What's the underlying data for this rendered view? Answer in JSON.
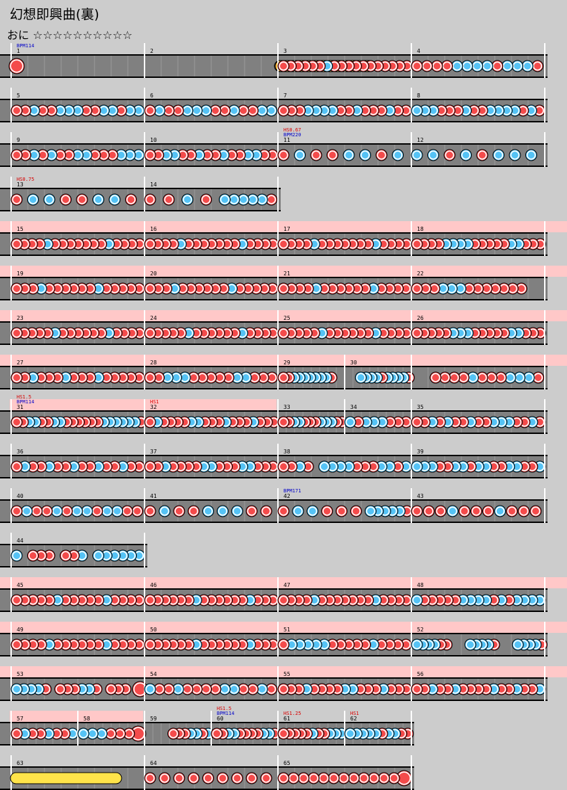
{
  "header": {
    "title": "幻想即興曲(裏)",
    "difficulty_label": "おに",
    "stars": "☆☆☆☆☆☆☆☆☆☆",
    "star_level": 10
  },
  "colors": {
    "don": "#f44b4b",
    "ka": "#55c3f5",
    "roll": "#ffb742",
    "balloon": "#ffe44a",
    "gogo_band": "#ffc8c8",
    "lane": "#808080",
    "bpm_text": "#0000c8",
    "hs_text": "#d80000"
  },
  "rows": [
    {
      "measures": [
        {
          "num": "1",
          "bpm": "BPM114",
          "pattern": "D.0000000000000000"
        },
        {
          "num": "2",
          "roll": "30",
          "pattern": "00000000000000000000"
        },
        {
          "num": "3",
          "pattern": "ddddddkddddddddddd"
        },
        {
          "num": "4",
          "pattern": "ddddkkkkdkkkd"
        }
      ]
    },
    {
      "measures": [
        {
          "num": "5",
          "pattern": "ddkddkkkddkkdkk"
        },
        {
          "num": "6",
          "pattern": "dkddkkkddkddkk"
        },
        {
          "num": "7",
          "pattern": "dddkkkkddkdddkdd"
        },
        {
          "num": "8",
          "pattern": "kkkdddkddkkkkdkd"
        }
      ]
    },
    {
      "measures": [
        {
          "num": "9",
          "pattern": "ddkdkddkkdddkkk"
        },
        {
          "num": "10",
          "pattern": "ddkkddkddkddkkdd"
        },
        {
          "num": "11",
          "hs": "HS0.67",
          "bpm": "BPM220",
          "pattern": "d0k0d0d0k0k0d0k0"
        },
        {
          "num": "12",
          "pattern": "k0k0d0k0d0k0k0k0"
        }
      ]
    },
    {
      "measures": [
        {
          "num": "13",
          "hs": "HS0.75",
          "pattern": "d0k0k0d0d0k0k0d0"
        },
        {
          "num": "14",
          "pattern": "d0d0k0d0kkkkkd"
        }
      ]
    },
    {
      "gogo": true,
      "measures": [
        {
          "num": "15",
          "pattern": "ddddkdddddddkdddd"
        },
        {
          "num": "16",
          "pattern": "ddddkdddddddkdddd"
        },
        {
          "num": "17",
          "pattern": "ddddkdddddddkdddd"
        },
        {
          "num": "18",
          "pattern": "ddddkkkkdddddkkddd"
        }
      ]
    },
    {
      "gogo": true,
      "measures": [
        {
          "num": "19",
          "pattern": "dddkddddddkddddd"
        },
        {
          "num": "20",
          "pattern": "dddkddddddkddddd"
        },
        {
          "num": "21",
          "pattern": "ddddkddddddkdddd"
        },
        {
          "num": "22",
          "pattern": "dddkkkddddddd00"
        }
      ]
    },
    {
      "gogo": true,
      "measures": [
        {
          "num": "23",
          "pattern": "dddddkddddddkdddd"
        },
        {
          "num": "24",
          "pattern": "dddddkddddddkdddd"
        },
        {
          "num": "25",
          "pattern": "dddddkddddddkdddd"
        },
        {
          "num": "26",
          "pattern": "dddddkkkdddddkkddd"
        }
      ]
    },
    {
      "gogo": true,
      "measures": [
        {
          "num": "27",
          "pattern": "ddkdddkdddkddddd"
        },
        {
          "num": "28",
          "pattern": "ddkkkdddddkkddd"
        },
        {
          "num": "29",
          "pattern": "ddkkkkkkkd00"
        },
        {
          "num": "30",
          "pattern": "00kkkkdkkkkd"
        },
        {
          "num": "",
          "pattern": "00ddddkdddkkkd"
        }
      ]
    },
    {
      "gogo_span": [
        0,
        1
      ],
      "measures": [
        {
          "num": "31",
          "hs": "HS1.5",
          "bpm": "BPM114",
          "pattern": "ddkkddkkddddddkkkkkkd"
        },
        {
          "num": "32",
          "hs": "HS1",
          "pattern": "dkddddkkdddkdddkddd"
        },
        {
          "num": "33",
          "pattern": "ddkkdddkkkdd"
        },
        {
          "num": "34",
          "pattern": "kdkkkddd"
        },
        {
          "num": "35",
          "pattern": "ddkdkddkddkkkddkd"
        }
      ]
    },
    {
      "measures": [
        {
          "num": "36",
          "pattern": "dkddkddkddkddkdd"
        },
        {
          "num": "37",
          "pattern": "ddkddddkkdddkkddd"
        },
        {
          "num": "38",
          "pattern": "ddkd0kkkkdddkkdk"
        },
        {
          "num": "39",
          "pattern": "kkkddkkdkkddkkddk"
        }
      ]
    },
    {
      "measures": [
        {
          "num": "40",
          "pattern": "dkddkdkkdkkdd"
        },
        {
          "num": "41",
          "pattern": "dkddkkkdd"
        },
        {
          "num": "42",
          "bpm": "BPM171",
          "pattern": "d0k0k0d0d0d0kkkkkd"
        },
        {
          "num": "43",
          "pattern": "dddkdddkddd"
        }
      ]
    },
    {
      "measures": [
        {
          "num": "44",
          "pattern": "k0ddd0ddk0kkkkkk"
        }
      ]
    },
    {
      "gogo": true,
      "measures": [
        {
          "num": "45",
          "pattern": "dddddkdddddkdddd"
        },
        {
          "num": "46",
          "pattern": "ddddddkddddddkddd"
        },
        {
          "num": "47",
          "pattern": "ddddkdddddddkdddd"
        },
        {
          "num": "48",
          "pattern": "kdddddkkkkdkdkkkk"
        }
      ]
    },
    {
      "gogo": true,
      "measures": [
        {
          "num": "49",
          "pattern": "ddddkddddddkdddd"
        },
        {
          "num": "50",
          "pattern": "ddddddkddddddkddd"
        },
        {
          "num": "51",
          "pattern": "dkkkkkdddddkdddd"
        },
        {
          "num": "52",
          "pattern": "kkkkdd000kkkkd000kkkkd"
        }
      ]
    },
    {
      "gogo": true,
      "measures": [
        {
          "num": "53",
          "pattern": "kkkkd0dddkkd0ddd0D"
        },
        {
          "num": "54",
          "pattern": "kddkddddkkddkd"
        },
        {
          "num": "55",
          "pattern": "dddkddddkkdddkddd"
        },
        {
          "num": "56",
          "pattern": "ddkddkddddkddkddk"
        }
      ]
    },
    {
      "gogo_span": [
        0,
        1
      ],
      "measures": [
        {
          "num": "57",
          "pattern": "dkddkddk"
        },
        {
          "num": "58",
          "pattern": "kkkdddD"
        },
        {
          "num": "59",
          "pattern": "0000dddkkdk"
        },
        {
          "num": "60",
          "hs": "HS1.5",
          "bpm": "BPM114",
          "pattern": "ddkkddddkkd"
        },
        {
          "num": "61",
          "hs": "HS1.25",
          "pattern": "dddddkddkkk"
        },
        {
          "num": "62",
          "hs": "HS1",
          "pattern": "kkkkkdkkdd"
        }
      ]
    },
    {
      "measures": [
        {
          "num": "63",
          "balloon": true,
          "pattern": "00000000"
        },
        {
          "num": "64",
          "pattern": "ddddddddd"
        },
        {
          "num": "65",
          "pattern": "ddddddddddddD"
        }
      ]
    }
  ]
}
